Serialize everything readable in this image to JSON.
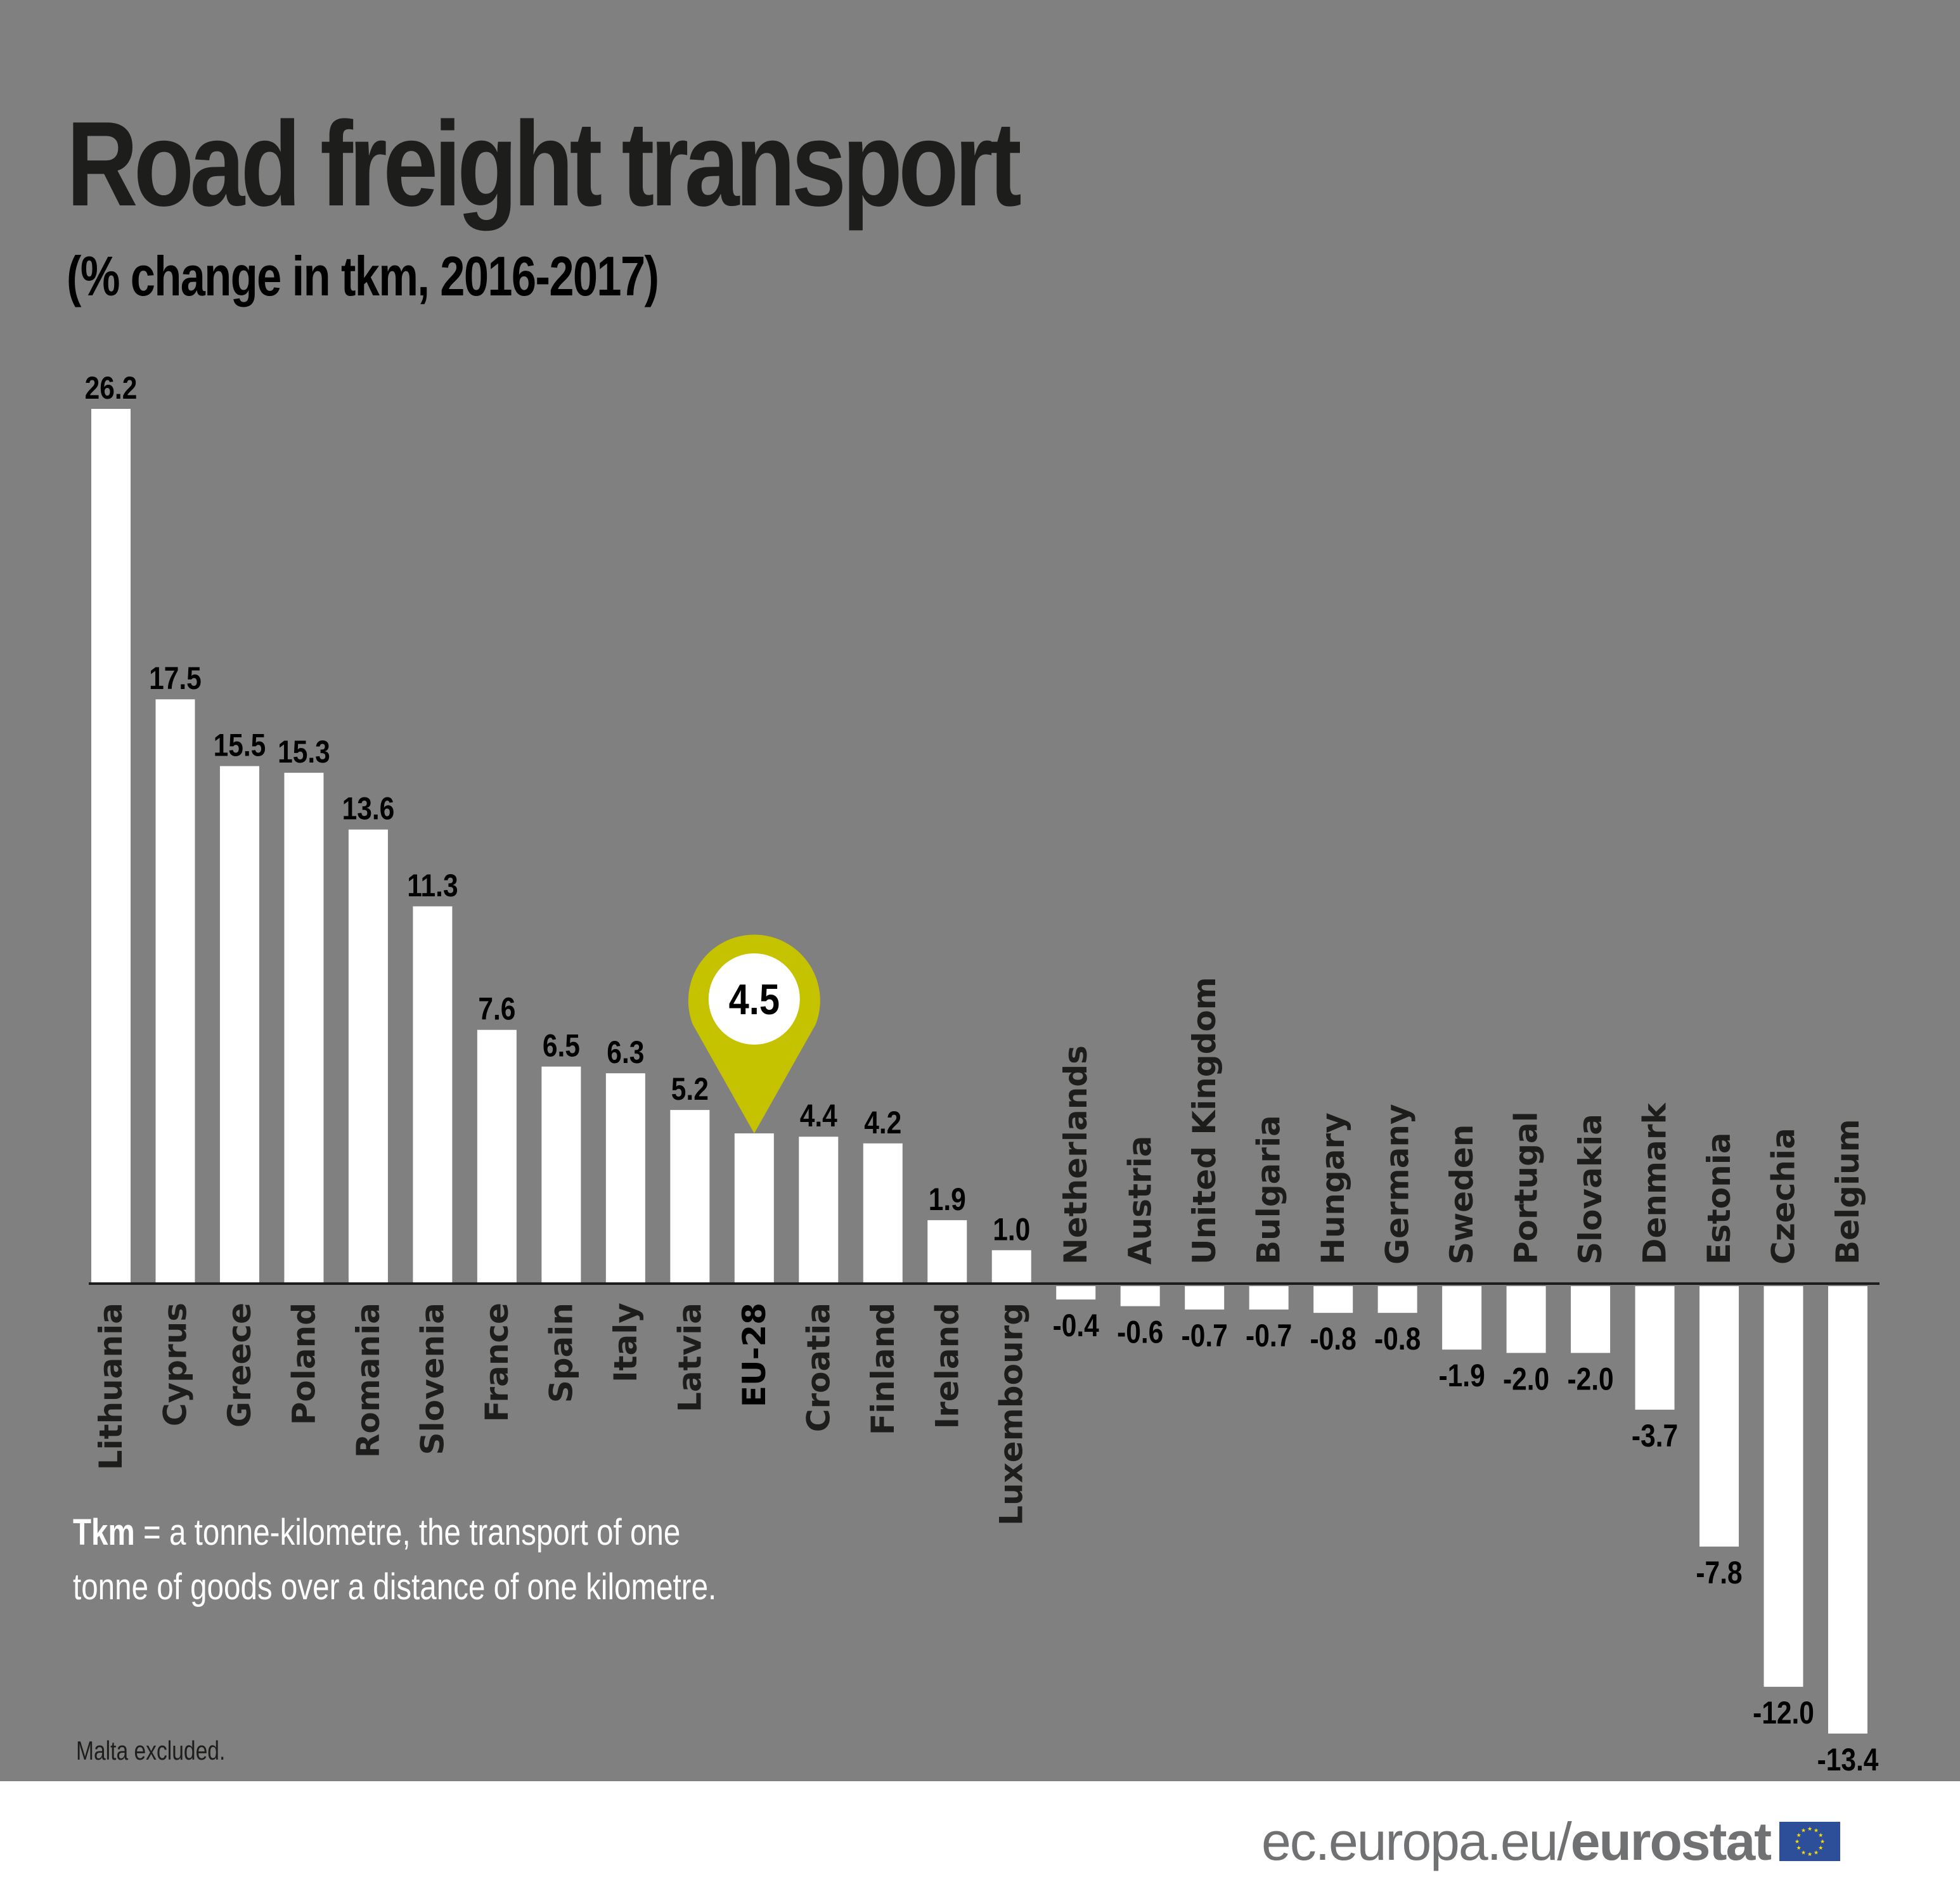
{
  "title": "Road freight transport",
  "subtitle": "(% change in tkm, 2016-2017)",
  "note": {
    "term": "Tkm",
    "line1": " = a tonne-kilometre, the transport of one",
    "line2": "tonne of goods over a distance of one kilometre."
  },
  "footnote": "Malta excluded.",
  "footer": {
    "url_light": "ec.europa.eu/",
    "url_bold": "eurostat",
    "logo": "eu-flag-icon"
  },
  "colors": {
    "background": "#808080",
    "bar": "#ffffff",
    "highlight": "#c5c300",
    "text": "#1d1d1b",
    "flag": "#2d4f9a",
    "flag_stars": "#ffdd00"
  },
  "chart_data": {
    "type": "bar",
    "title": "Road freight transport",
    "subtitle": "(% change in tkm, 2016-2017)",
    "xlabel": "",
    "ylabel": "",
    "ylim": [
      -13.4,
      26.2
    ],
    "grid": false,
    "highlight": {
      "category": "EU-28",
      "label": "4.5"
    },
    "categories": [
      "Lithuania",
      "Cyprus",
      "Greece",
      "Poland",
      "Romania",
      "Slovenia",
      "France",
      "Spain",
      "Italy",
      "Latvia",
      "EU-28",
      "Croatia",
      "Finland",
      "Ireland",
      "Luxembourg",
      "Netherlands",
      "Austria",
      "United Kingdom",
      "Bulgaria",
      "Hungary",
      "Germany",
      "Sweden",
      "Portugal",
      "Slovakia",
      "Denmark",
      "Estonia",
      "Czechia",
      "Belgium"
    ],
    "values": [
      26.2,
      17.5,
      15.5,
      15.3,
      13.6,
      11.3,
      7.6,
      6.5,
      6.3,
      5.2,
      4.5,
      4.4,
      4.2,
      1.9,
      1.0,
      -0.4,
      -0.6,
      -0.7,
      -0.7,
      -0.8,
      -0.8,
      -1.9,
      -2.0,
      -2.0,
      -3.7,
      -7.8,
      -12.0,
      -13.4
    ],
    "labels": [
      "26.2",
      "17.5",
      "15.5",
      "15.3",
      "13.6",
      "11.3",
      "7.6",
      "6.5",
      "6.3",
      "5.2",
      "",
      "4.4",
      "4.2",
      "1.9",
      "1.0",
      "-0.4",
      "-0.6",
      "-0.7",
      "-0.7",
      "-0.8",
      "-0.8",
      "-1.9",
      "-2.0",
      "-2.0",
      "-3.7",
      "-7.8",
      "-12.0",
      "-13.4"
    ]
  }
}
